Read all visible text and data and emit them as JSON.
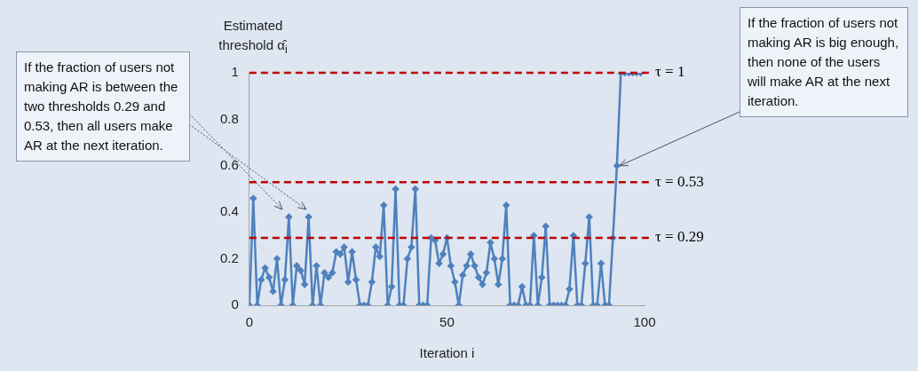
{
  "chart_data": {
    "type": "line",
    "xlabel": "Iteration i",
    "ylabel": "Estimated threshold α̂$_{i}$",
    "x": [
      0,
      1,
      2,
      3,
      4,
      5,
      6,
      7,
      8,
      9,
      10,
      11,
      12,
      13,
      14,
      15,
      16,
      17,
      18,
      19,
      20,
      21,
      22,
      23,
      24,
      25,
      26,
      27,
      28,
      29,
      30,
      31,
      32,
      33,
      34,
      35,
      36,
      37,
      38,
      39,
      40,
      41,
      42,
      43,
      44,
      45,
      46,
      47,
      48,
      49,
      50,
      51,
      52,
      53,
      54,
      55,
      56,
      57,
      58,
      59,
      60,
      61,
      62,
      63,
      64,
      65,
      66,
      67,
      68,
      69,
      70,
      71,
      72,
      73,
      74,
      75,
      76,
      77,
      78,
      79,
      80,
      81,
      82,
      83,
      84,
      85,
      86,
      87,
      88,
      89,
      90,
      91,
      92,
      93,
      94,
      95,
      96,
      97,
      98,
      99
    ],
    "series": [
      {
        "color": "#4f81bd",
        "values": [
          0,
          0.46,
          0,
          0.11,
          0.16,
          0.12,
          0.06,
          0.2,
          0,
          0.11,
          0.38,
          0,
          0.17,
          0.15,
          0.09,
          0.38,
          0,
          0.17,
          0,
          0.14,
          0.12,
          0.14,
          0.23,
          0.22,
          0.25,
          0.1,
          0.23,
          0.11,
          0,
          0,
          0,
          0.1,
          0.25,
          0.21,
          0.43,
          0,
          0.08,
          0.5,
          0,
          0,
          0.2,
          0.25,
          0.5,
          0,
          0,
          0,
          0.29,
          0.28,
          0.18,
          0.22,
          0.29,
          0.17,
          0.1,
          0,
          0.13,
          0.17,
          0.22,
          0.17,
          0.12,
          0.09,
          0.14,
          0.27,
          0.2,
          0.09,
          0.2,
          0.43,
          0,
          0,
          0,
          0.08,
          0,
          0,
          0.3,
          0,
          0.12,
          0.34,
          0,
          0,
          0,
          0,
          0,
          0.07,
          0.3,
          0,
          0,
          0.18,
          0.38,
          0,
          0,
          0.18,
          0,
          0,
          0.29,
          0.6,
          1,
          1,
          1,
          1,
          1,
          1
        ]
      }
    ],
    "xlim": [
      0,
      100
    ],
    "xticks": [
      0,
      50,
      100
    ],
    "ylim": [
      0,
      1
    ],
    "yticks": [
      0,
      0.2,
      0.4,
      0.6,
      0.8,
      1
    ],
    "grid": false,
    "legend": false,
    "marker": "diamond",
    "line_style": "solid",
    "ref_lines": [
      {
        "axis": "y",
        "value": 1,
        "label": "τ = 1",
        "color": "#c00000",
        "line_style": "dashed"
      },
      {
        "axis": "y",
        "value": 0.53,
        "label": "τ = 0.53",
        "color": "#c00000",
        "line_style": "dashed"
      },
      {
        "axis": "y",
        "value": 0.29,
        "label": "τ = 0.29",
        "color": "#c00000",
        "line_style": "dashed"
      }
    ],
    "annotations": [
      "If the fraction of users not making AR is between the two thresholds 0.29 and 0.53, then all users make AR at the next iteration.",
      {
        "text": "If the fraction of users not making AR is big enough, then none of the users will make AR at the next iteration.",
        "x": 93,
        "y": 0.6
      }
    ]
  }
}
